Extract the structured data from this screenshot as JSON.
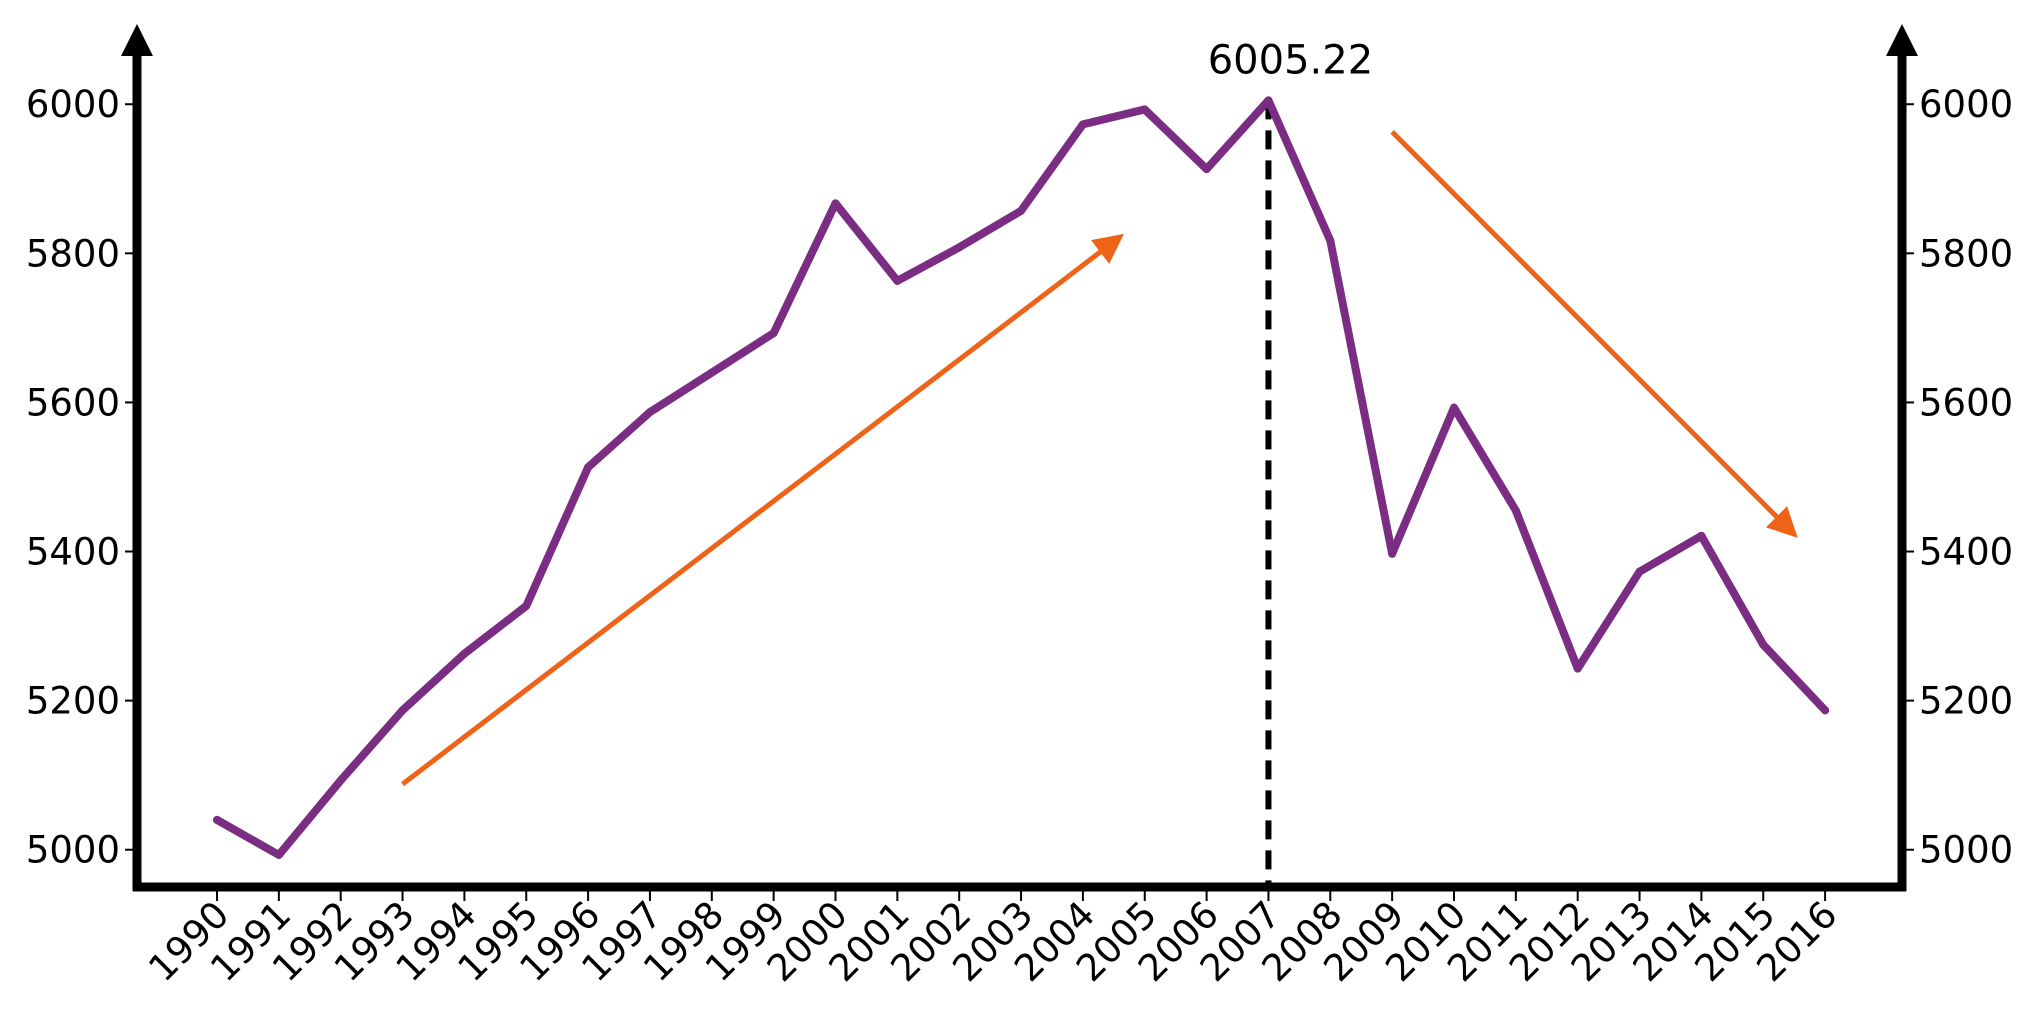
{
  "chart_data": {
    "type": "line",
    "title": "",
    "xlabel": "",
    "ylabel": "",
    "categories": [
      "1990",
      "1991",
      "1992",
      "1993",
      "1994",
      "1995",
      "1996",
      "1997",
      "1998",
      "1999",
      "2000",
      "2001",
      "2002",
      "2003",
      "2004",
      "2005",
      "2006",
      "2007",
      "2008",
      "2009",
      "2010",
      "2011",
      "2012",
      "2013",
      "2014",
      "2015",
      "2016"
    ],
    "series": [
      {
        "values": [
          5040,
          4993,
          5093,
          5187,
          5263,
          5327,
          5513,
          5587,
          5640,
          5693,
          5867,
          5763,
          5808,
          5857,
          5973,
          5993,
          5913,
          6005.22,
          5817,
          5397,
          5593,
          5455,
          5243,
          5373,
          5421,
          5275,
          5187
        ],
        "color": "#7B2D83"
      }
    ],
    "ylim": [
      4950,
      6050
    ],
    "yticks": [
      "5000",
      "5200",
      "5400",
      "5600",
      "5800",
      "6000"
    ],
    "secondary_y_axis": true,
    "grid": false,
    "legend": "none",
    "peak": {
      "category": "2007",
      "value": 6005.22,
      "label": "6005.22",
      "marker_color": "#000000",
      "marker_style": "dashed vertical line"
    },
    "trend_arrows": [
      {
        "direction": "up",
        "from": {
          "x": "1993",
          "y": 5088
        },
        "to": {
          "x": "2004.6",
          "y": 5822
        },
        "color": "#EE6318"
      },
      {
        "direction": "down",
        "from": {
          "x": "2009",
          "y": 5963
        },
        "to": {
          "x": "2015.5",
          "y": 5423
        },
        "color": "#EE6318"
      }
    ],
    "axis_color": "#000000"
  }
}
